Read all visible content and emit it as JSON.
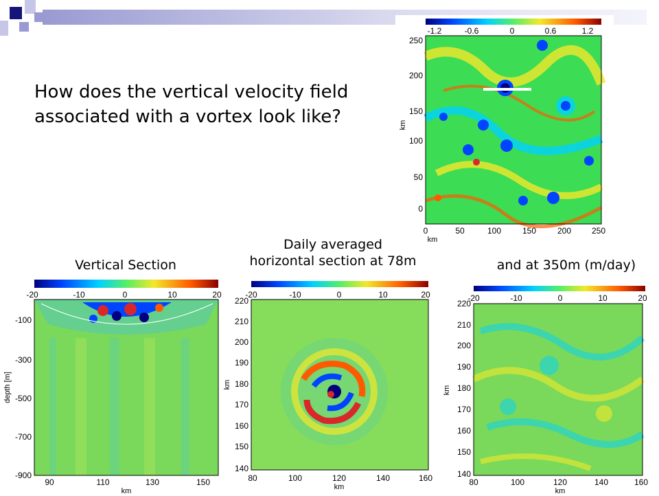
{
  "slide": {
    "title_line1": "How does the vertical velocity field",
    "title_line2": "associated with a vortex look like?",
    "captions": {
      "vertical_section": "Vertical Section",
      "horizontal_line1": "Daily averaged",
      "horizontal_line2": "horizontal section at 78m",
      "deep_section": "and at 350m  (m/day)"
    }
  },
  "colors": {
    "accent_navy": "#14147a",
    "accent_lavender": "#9a9ad2",
    "colormap": [
      "#00007f",
      "#0044ff",
      "#00d2ff",
      "#55ee66",
      "#f2e82a",
      "#ff5a00",
      "#8b0000"
    ]
  },
  "top_map": {
    "colorbar_ticks": [
      "-1.2",
      "-0.6",
      "0",
      "0.6",
      "1.2"
    ],
    "x_ticks": [
      "0",
      "50",
      "100",
      "150",
      "200",
      "250"
    ],
    "y_ticks": [
      "250",
      "200",
      "150",
      "100",
      "50",
      "0"
    ],
    "xlabel": "km",
    "ylabel": "km"
  },
  "vertical_panel": {
    "colorbar_ticks": [
      "-20",
      "-10",
      "0",
      "10",
      "20"
    ],
    "y_ticks": [
      "-100",
      "-300",
      "-500",
      "-700",
      "-900"
    ],
    "x_ticks": [
      "90",
      "110",
      "130",
      "150"
    ],
    "ylabel": "depth [m]",
    "xlabel": "km"
  },
  "mid_panel": {
    "colorbar_ticks": [
      "-20",
      "-10",
      "0",
      "10",
      "20"
    ],
    "y_ticks": [
      "220",
      "210",
      "200",
      "190",
      "180",
      "170",
      "160",
      "150",
      "140"
    ],
    "x_ticks": [
      "80",
      "100",
      "120",
      "140",
      "160"
    ],
    "ylabel": "km",
    "xlabel": "km"
  },
  "right_panel": {
    "colorbar_ticks": [
      "-20",
      "-10",
      "0",
      "10",
      "20"
    ],
    "y_ticks": [
      "220",
      "210",
      "200",
      "190",
      "180",
      "170",
      "160",
      "150",
      "140"
    ],
    "x_ticks": [
      "80",
      "100",
      "120",
      "140",
      "160"
    ],
    "ylabel": "km",
    "xlabel": "km"
  }
}
